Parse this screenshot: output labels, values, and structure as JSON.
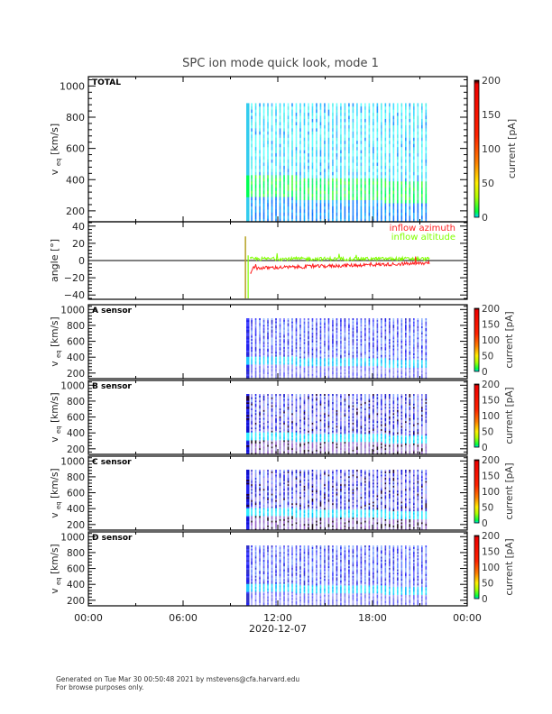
{
  "title": "SPC ion mode quick look, mode 1",
  "x_axis": {
    "tick_labels": [
      "00:00",
      "06:00",
      "12:00",
      "18:00",
      "00:00"
    ],
    "date_label": "2020-12-07"
  },
  "footer": {
    "line1": "Generated on Tue Mar 30 00:50:48 2021 by mstevens@cfa.harvard.edu",
    "line2": "For browse purposes only."
  },
  "chart_data": [
    {
      "type": "heatmap",
      "panel": "TOTAL",
      "label": "TOTAL",
      "ylabel": "v_eq [km/s]",
      "ylabel_main": "v",
      "ylabel_sub": "eq",
      "ylabel_unit": "[km/s]",
      "ylim": [
        130,
        1060
      ],
      "yticks": [
        "200",
        "400",
        "600",
        "800",
        "1000"
      ],
      "xlim_hours": [
        0,
        24
      ],
      "data_start_hour": 10.0,
      "data_end_hour": 21.6,
      "scan_vmax": 880,
      "core_band_kms": [
        280,
        420
      ],
      "colorbar": {
        "label": "current [pA]",
        "range": [
          0,
          200
        ],
        "ticks": [
          "0",
          "50",
          "100",
          "150",
          "200"
        ]
      },
      "palette": "cyan-green"
    },
    {
      "type": "line",
      "panel": "angle",
      "ylabel": "angle [°]",
      "ylim": [
        -45,
        45
      ],
      "yticks": [
        "-40",
        "-20",
        "0",
        "20",
        "40"
      ],
      "xlim_hours": [
        0,
        24
      ],
      "series": [
        {
          "name": "inflow azimuth",
          "color": "#ff2020",
          "start_hour": 10.25,
          "end_hour": 21.6,
          "mean_start": -9,
          "mean_end": -3
        },
        {
          "name": "inflow altitude",
          "color": "#80ff00",
          "start_hour": 10.25,
          "end_hour": 21.6,
          "mean_start": 2,
          "mean_end": 2
        }
      ],
      "spike": {
        "hour": 9.95,
        "min": -44,
        "max": 28,
        "color": "#b5a020"
      }
    },
    {
      "type": "heatmap",
      "panel": "A",
      "label": "A sensor",
      "ylabel": "v_eq [km/s]",
      "ylabel_main": "v",
      "ylabel_sub": "eq",
      "ylabel_unit": "[km/s]",
      "ylim": [
        130,
        1060
      ],
      "yticks": [
        "200",
        "400",
        "600",
        "800",
        "1000"
      ],
      "xlim_hours": [
        0,
        24
      ],
      "data_start_hour": 10.0,
      "data_end_hour": 21.6,
      "scan_vmax": 880,
      "core_band_kms": [
        300,
        400
      ],
      "colorbar": {
        "label": "current [pA]",
        "range": [
          0,
          200
        ],
        "ticks": [
          "0",
          "50",
          "100",
          "150",
          "200"
        ]
      },
      "palette": "blue"
    },
    {
      "type": "heatmap",
      "panel": "B",
      "label": "B sensor",
      "ylabel": "v_eq [km/s]",
      "ylabel_main": "v",
      "ylabel_sub": "eq",
      "ylabel_unit": "[km/s]",
      "ylim": [
        130,
        1060
      ],
      "yticks": [
        "200",
        "400",
        "600",
        "800",
        "1000"
      ],
      "xlim_hours": [
        0,
        24
      ],
      "data_start_hour": 10.0,
      "data_end_hour": 21.6,
      "scan_vmax": 880,
      "core_band_kms": [
        300,
        400
      ],
      "colorbar": {
        "label": "current [pA]",
        "range": [
          0,
          200
        ],
        "ticks": [
          "0",
          "50",
          "100",
          "150",
          "200"
        ]
      },
      "palette": "blue-dark"
    },
    {
      "type": "heatmap",
      "panel": "C",
      "label": "C sensor",
      "ylabel": "v_eq [km/s]",
      "ylabel_main": "v",
      "ylabel_sub": "eq",
      "ylabel_unit": "[km/s]",
      "ylim": [
        130,
        1060
      ],
      "yticks": [
        "200",
        "400",
        "600",
        "800",
        "1000"
      ],
      "xlim_hours": [
        0,
        24
      ],
      "data_start_hour": 10.0,
      "data_end_hour": 21.6,
      "scan_vmax": 880,
      "core_band_kms": [
        300,
        400
      ],
      "colorbar": {
        "label": "current [pA]",
        "range": [
          0,
          200
        ],
        "ticks": [
          "0",
          "50",
          "100",
          "150",
          "200"
        ]
      },
      "palette": "blue-dark"
    },
    {
      "type": "heatmap",
      "panel": "D",
      "label": "D sensor",
      "ylabel": "v_eq [km/s]",
      "ylabel_main": "v",
      "ylabel_sub": "eq",
      "ylabel_unit": "[km/s]",
      "ylim": [
        130,
        1060
      ],
      "yticks": [
        "200",
        "400",
        "600",
        "800",
        "1000"
      ],
      "xlim_hours": [
        0,
        24
      ],
      "data_start_hour": 10.0,
      "data_end_hour": 21.6,
      "scan_vmax": 880,
      "core_band_kms": [
        300,
        400
      ],
      "colorbar": {
        "label": "current [pA]",
        "range": [
          0,
          200
        ],
        "ticks": [
          "0",
          "50",
          "100",
          "150",
          "200"
        ]
      },
      "palette": "blue"
    }
  ]
}
